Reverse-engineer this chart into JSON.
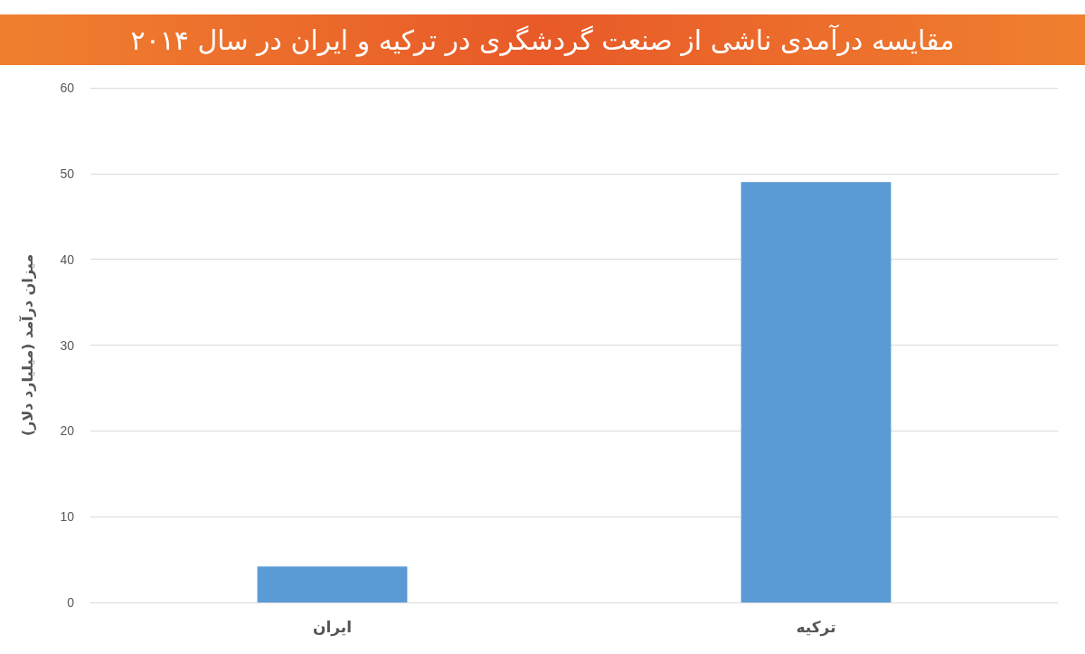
{
  "chart_data": {
    "type": "bar",
    "title": "مقایسه درآمدی ناشی از صنعت گردشگری در ترکیه و ایران در سال ۲۰۱۴",
    "ylabel": "میزان درآمد (میلیارد دلار)",
    "categories": [
      "ایران",
      "ترکیه"
    ],
    "values": [
      4.2,
      49
    ],
    "color": "#5b9bd5",
    "ylim": [
      0,
      60
    ],
    "yticks": [
      0,
      10,
      20,
      30,
      40,
      50,
      60
    ],
    "grid": "y"
  }
}
